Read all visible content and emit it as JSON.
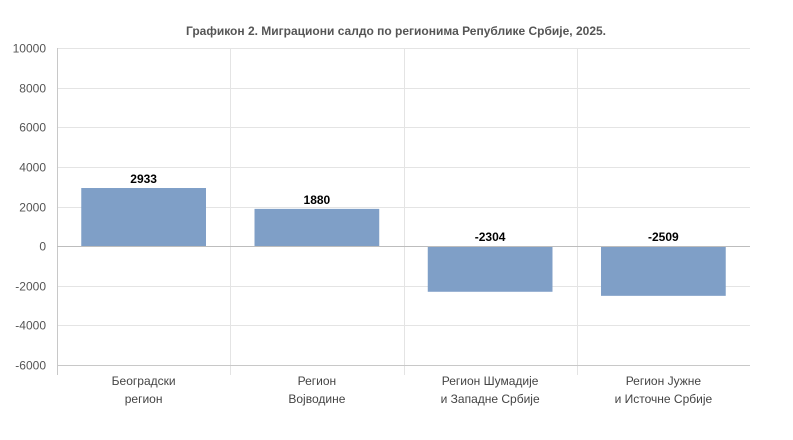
{
  "chart_data": {
    "type": "bar",
    "title": "Графикон 2. Миграциони салдо по регионима Републике Србије, 2025.",
    "categories": [
      [
        "Београдски",
        "регион"
      ],
      [
        "Регион",
        "Војводине"
      ],
      [
        "Регион Шумадије",
        "и Западне Србије"
      ],
      [
        "Регион Јужне",
        "и Источне Србије"
      ]
    ],
    "values": [
      2933,
      1880,
      -2304,
      -2509
    ],
    "data_labels": [
      "2933",
      "1880",
      "-2304",
      "-2509"
    ],
    "ylim": [
      -6000,
      10000
    ],
    "yticks": [
      10000,
      8000,
      6000,
      4000,
      2000,
      0,
      -2000,
      -4000,
      -6000
    ],
    "xlabel": "",
    "ylabel": "",
    "grid": true,
    "legend": "none",
    "colors": {
      "bar": "#7f9fc7",
      "grid": "#e4e4e4",
      "axis": "#c8c8c8",
      "zero_line": "#bdbdbd"
    }
  }
}
